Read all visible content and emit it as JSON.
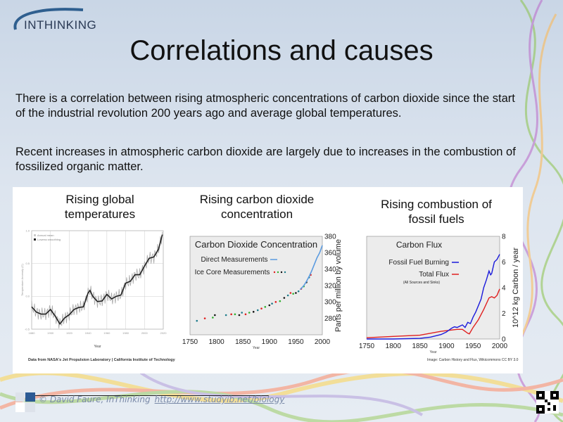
{
  "logo": {
    "text": "INTHINKING"
  },
  "title": "Correlations and causes",
  "paragraphs": [
    "There is a correlation between rising atmospheric concentrations of carbon dioxide since the start of the industrial revolution 200 years ago and average global temperatures.",
    "Recent increases in atmospheric carbon dioxide are largely due to increases in the combustion of fossilized organic matter."
  ],
  "chart_titles": [
    "Rising global temperatures",
    "Rising carbon dioxide concentration",
    "Rising combustion of fossil fuels"
  ],
  "credits": {
    "temperature": "Data from NASA's Jet Propulsion Laboratory | California Institute of Technology",
    "flux": "Image: Carbon History and Flux, Wikicommons CC BY 3.0"
  },
  "footer": {
    "copyright": "© David Faure, InThinking",
    "link": "http://www.studyib.net/biology"
  },
  "chart_data": [
    {
      "type": "line",
      "title": "",
      "xlabel": "Year",
      "ylabel": "Temperature Anomaly (C)",
      "xlim": [
        1880,
        2020
      ],
      "ylim": [
        -0.5,
        1.0
      ],
      "xticks": [
        1880,
        1900,
        1920,
        1940,
        1960,
        1980,
        2000,
        2020
      ],
      "yticks": [
        -0.5,
        0.0,
        0.5,
        1.0
      ],
      "grid": true,
      "legend_position": "top-left",
      "series": [
        {
          "name": "Lowess smoothing",
          "color": "#222222",
          "x": [
            1880,
            1885,
            1890,
            1895,
            1900,
            1905,
            1910,
            1915,
            1920,
            1925,
            1930,
            1935,
            1940,
            1942,
            1945,
            1950,
            1955,
            1960,
            1965,
            1970,
            1975,
            1980,
            1985,
            1990,
            1995,
            2000,
            2005,
            2010,
            2015,
            2019
          ],
          "y": [
            -0.16,
            -0.24,
            -0.27,
            -0.27,
            -0.2,
            -0.3,
            -0.42,
            -0.33,
            -0.28,
            -0.2,
            -0.17,
            -0.16,
            0.05,
            0.09,
            0.0,
            -0.08,
            -0.07,
            0.03,
            -0.04,
            0.0,
            0.02,
            0.2,
            0.23,
            0.33,
            0.33,
            0.46,
            0.58,
            0.6,
            0.72,
            0.94
          ]
        },
        {
          "name": "Annual mean",
          "color": "#aaaaaa"
        }
      ]
    },
    {
      "type": "scatter",
      "title": "Carbon Dioxide Concentration",
      "xlabel": "Year",
      "ylabel": "Parts per million by volume",
      "xlim": [
        1750,
        2000
      ],
      "ylim": [
        260,
        380
      ],
      "xticks": [
        1750,
        1800,
        1850,
        1900,
        1950,
        2000
      ],
      "yticks": [
        280,
        300,
        320,
        340,
        360,
        380
      ],
      "legend_position": "top-left",
      "series": [
        {
          "name": "Direct Measurements",
          "color": "#5b9be0",
          "x": [
            1958,
            1965,
            1970,
            1975,
            1980,
            1985,
            1990,
            1995,
            2000
          ],
          "y": [
            315,
            320,
            325,
            331,
            338,
            346,
            354,
            360,
            369
          ]
        },
        {
          "name": "Ice Core Measurements",
          "colors": [
            "#1a7a8a",
            "#e02020",
            "#30b030",
            "#111111"
          ],
          "x": [
            1763,
            1778,
            1793,
            1797,
            1818,
            1828,
            1835,
            1843,
            1848,
            1855,
            1862,
            1870,
            1878,
            1885,
            1892,
            1900,
            1905,
            1912,
            1920,
            1928,
            1935,
            1940,
            1945,
            1950,
            1955,
            1960,
            1965,
            1970,
            1975,
            1978
          ],
          "y": [
            277,
            280,
            281,
            284,
            284,
            285,
            285,
            284,
            287,
            285,
            287,
            288,
            290,
            292,
            294,
            296,
            298,
            300,
            301,
            305,
            308,
            311,
            310,
            311,
            313,
            316,
            319,
            324,
            330,
            333
          ]
        }
      ]
    },
    {
      "type": "line",
      "title": "Carbon Flux",
      "xlabel": "Year",
      "ylabel": "10^12 kg Carbon / year",
      "xlim": [
        1750,
        2000
      ],
      "ylim": [
        0,
        8
      ],
      "xticks": [
        1750,
        1800,
        1850,
        1900,
        1950,
        2000
      ],
      "yticks": [
        0,
        2,
        4,
        6,
        8
      ],
      "legend_position": "top-center",
      "series": [
        {
          "name": "Fossil Fuel Burning",
          "color": "#1a1adb",
          "x": [
            1750,
            1800,
            1850,
            1870,
            1890,
            1900,
            1910,
            1915,
            1920,
            1925,
            1930,
            1935,
            1940,
            1945,
            1950,
            1955,
            1960,
            1965,
            1970,
            1975,
            1980,
            1983,
            1985,
            1990,
            1995,
            2000
          ],
          "y": [
            0,
            0,
            0.05,
            0.15,
            0.35,
            0.55,
            0.85,
            0.95,
            0.9,
            1.0,
            1.1,
            0.9,
            1.3,
            1.2,
            1.7,
            2.1,
            2.6,
            3.1,
            4.0,
            4.6,
            5.3,
            5.0,
            5.1,
            6.0,
            6.2,
            6.6
          ]
        },
        {
          "name": "Total Flux",
          "note": "(All Sources and Sinks)",
          "color": "#e02020",
          "x": [
            1750,
            1800,
            1850,
            1870,
            1890,
            1910,
            1920,
            1930,
            1935,
            1940,
            1943,
            1950,
            1960,
            1970,
            1980,
            1985,
            1990,
            1995,
            2000
          ],
          "y": [
            0.1,
            0.2,
            0.3,
            0.45,
            0.6,
            0.7,
            0.75,
            0.75,
            0.6,
            0.45,
            0.4,
            0.9,
            1.5,
            2.3,
            3.2,
            3.3,
            3.2,
            3.4,
            3.9
          ]
        }
      ]
    }
  ]
}
